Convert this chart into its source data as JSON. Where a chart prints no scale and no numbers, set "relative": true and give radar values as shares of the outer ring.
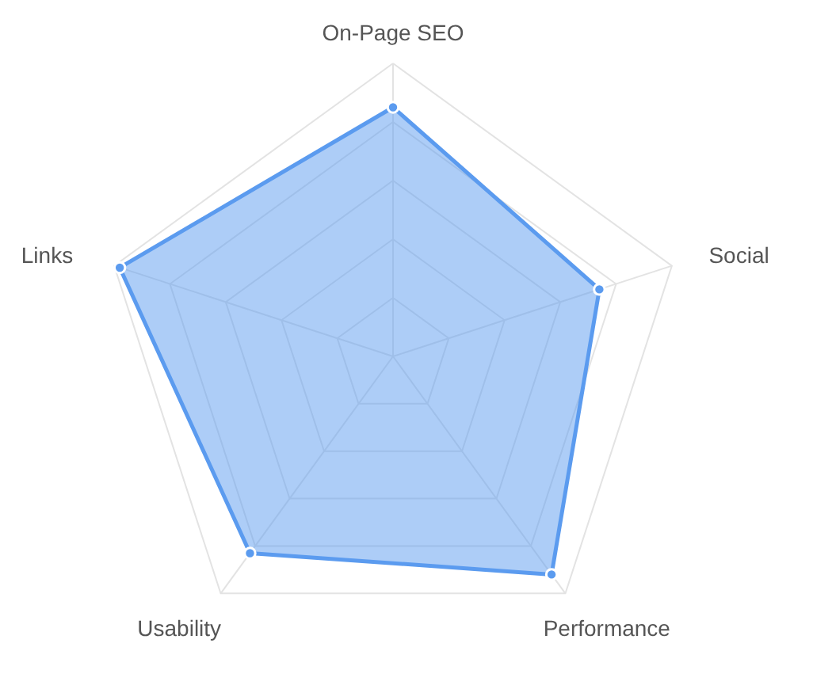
{
  "chart_data": {
    "type": "radar",
    "relative": true,
    "categories": [
      "On-Page SEO",
      "Social",
      "Performance",
      "Usability",
      "Links"
    ],
    "series": [
      {
        "color": "#5b9bef",
        "values": [
          0.85,
          0.74,
          0.92,
          0.83,
          0.98
        ]
      }
    ],
    "grid": true,
    "marker": "circle"
  }
}
